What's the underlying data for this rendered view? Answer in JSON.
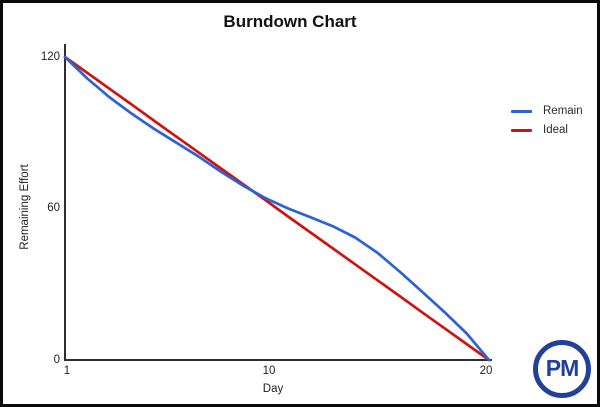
{
  "chart": {
    "title": "Burndown Chart",
    "xlabel": "Day",
    "ylabel": "Remaining Effort",
    "x_ticks": [
      "1",
      "10",
      "20"
    ],
    "y_ticks": [
      "0",
      "60",
      "120"
    ],
    "legend": [
      {
        "label": "Remain",
        "color": "#2b62d4"
      },
      {
        "label": "Ideal",
        "color": "#cc1410"
      }
    ]
  },
  "chart_data": {
    "type": "line",
    "title": "Burndown Chart",
    "xlabel": "Day",
    "ylabel": "Remaining Effort",
    "xlim": [
      1,
      20
    ],
    "ylim": [
      0,
      120
    ],
    "x_tick_values": [
      1,
      10,
      20
    ],
    "y_tick_values": [
      0,
      60,
      120
    ],
    "grid": false,
    "legend_position": "right",
    "x": [
      1,
      2,
      3,
      4,
      5,
      6,
      7,
      8,
      9,
      10,
      11,
      12,
      13,
      14,
      15,
      16,
      17,
      18,
      19,
      20
    ],
    "series": [
      {
        "name": "Remain",
        "color": "#2b62d4",
        "values": [
          120,
          111.5,
          104,
          97.5,
          91.5,
          86,
          80.5,
          74.5,
          69,
          64,
          60,
          56.5,
          53,
          48.5,
          42.5,
          35,
          27,
          19,
          10.5,
          0
        ]
      },
      {
        "name": "Ideal",
        "color": "#cc1410",
        "values": [
          120,
          113.7,
          107.4,
          101.1,
          94.7,
          88.4,
          82.1,
          75.8,
          69.5,
          63.2,
          56.8,
          50.5,
          44.2,
          37.9,
          31.6,
          25.3,
          18.9,
          12.6,
          6.3,
          0
        ]
      }
    ]
  },
  "logo": {
    "text": "PM",
    "color": "#21409a"
  },
  "colors": {
    "axis": "#2e2e2e",
    "frame_border": "#0a0a0a",
    "background": "#ffffff"
  }
}
